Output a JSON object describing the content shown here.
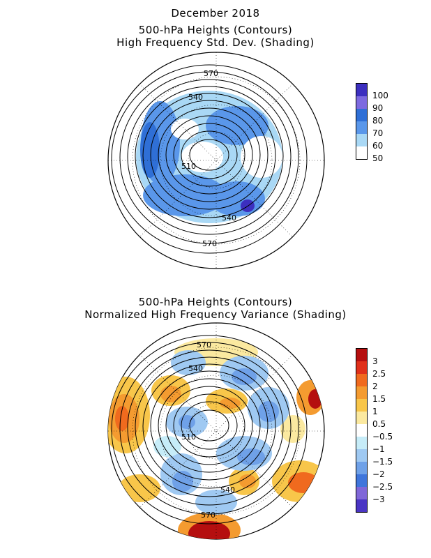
{
  "top": {
    "title_lines": [
      "December 2018",
      "500-hPa Heights (Contours)",
      "High Frequency Std. Dev. (Shading)"
    ],
    "contour_labels": [
      "570",
      "540",
      "510",
      "540",
      "570"
    ],
    "colorbar": {
      "labels": [
        "100",
        "90",
        "80",
        "70",
        "60",
        "50"
      ],
      "colors": [
        "#3c2fbf",
        "#7d6ae0",
        "#2f6fd6",
        "#5a97ea",
        "#a9d8f5",
        "#ffffff"
      ]
    }
  },
  "bottom": {
    "title_lines": [
      "500-hPa Heights (Contours)",
      "Normalized High Frequency Variance (Shading)"
    ],
    "contour_labels": [
      "570",
      "540",
      "510",
      "540",
      "570"
    ],
    "colorbar": {
      "labels": [
        "3",
        "2.5",
        "2",
        "1.5",
        "1",
        "0.5",
        "−0.5",
        "−1",
        "−1.5",
        "−2",
        "−2.5",
        "−3"
      ],
      "colors": [
        "#b50f0f",
        "#e0301a",
        "#f06a1e",
        "#f49b30",
        "#f8c64a",
        "#fbe9a0",
        "#ffffff",
        "#c6ecf8",
        "#9fc9f2",
        "#6fa1e8",
        "#3f75db",
        "#8067d8",
        "#4a35c4"
      ]
    }
  }
}
